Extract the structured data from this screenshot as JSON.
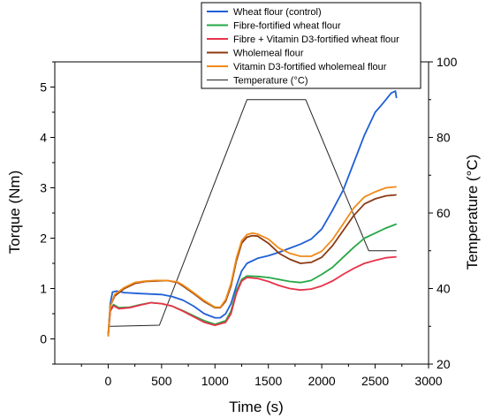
{
  "chart_data": {
    "type": "line",
    "xlabel": "Time (s)",
    "ylabel_left": "Torque (Nm)",
    "ylabel_right": "Temperature (°C)",
    "xlim": [
      -500,
      3000
    ],
    "ylim_left": [
      -0.5,
      5.5
    ],
    "ylim_right": [
      20,
      100
    ],
    "x_ticks": [
      0,
      500,
      1000,
      1500,
      2000,
      2500,
      3000
    ],
    "y_left_ticks": [
      0,
      1,
      2,
      3,
      4,
      5
    ],
    "y_right_ticks": [
      20,
      40,
      60,
      80,
      100
    ],
    "grid": false,
    "legend_position": "top-right",
    "series": [
      {
        "name": "Wheat flour (control)",
        "axis": "left",
        "color": "#1f5fd6",
        "points": [
          [
            0,
            0.05
          ],
          [
            20,
            0.7
          ],
          [
            40,
            0.93
          ],
          [
            80,
            0.95
          ],
          [
            150,
            0.92
          ],
          [
            300,
            0.9
          ],
          [
            500,
            0.88
          ],
          [
            600,
            0.84
          ],
          [
            700,
            0.77
          ],
          [
            800,
            0.65
          ],
          [
            900,
            0.5
          ],
          [
            1000,
            0.42
          ],
          [
            1050,
            0.42
          ],
          [
            1100,
            0.5
          ],
          [
            1150,
            0.7
          ],
          [
            1200,
            1.05
          ],
          [
            1250,
            1.35
          ],
          [
            1300,
            1.5
          ],
          [
            1400,
            1.6
          ],
          [
            1500,
            1.65
          ],
          [
            1600,
            1.72
          ],
          [
            1700,
            1.8
          ],
          [
            1800,
            1.88
          ],
          [
            1900,
            1.98
          ],
          [
            2000,
            2.18
          ],
          [
            2100,
            2.55
          ],
          [
            2200,
            2.95
          ],
          [
            2300,
            3.5
          ],
          [
            2400,
            4.05
          ],
          [
            2500,
            4.5
          ],
          [
            2550,
            4.62
          ],
          [
            2600,
            4.75
          ],
          [
            2650,
            4.88
          ],
          [
            2690,
            4.92
          ],
          [
            2700,
            4.78
          ]
        ]
      },
      {
        "name": "Fibre-fortified wheat flour",
        "axis": "left",
        "color": "#27a745",
        "points": [
          [
            0,
            0.05
          ],
          [
            20,
            0.58
          ],
          [
            50,
            0.68
          ],
          [
            100,
            0.62
          ],
          [
            200,
            0.63
          ],
          [
            300,
            0.68
          ],
          [
            400,
            0.72
          ],
          [
            500,
            0.7
          ],
          [
            600,
            0.65
          ],
          [
            700,
            0.56
          ],
          [
            800,
            0.46
          ],
          [
            900,
            0.36
          ],
          [
            1000,
            0.29
          ],
          [
            1100,
            0.36
          ],
          [
            1150,
            0.55
          ],
          [
            1200,
            0.95
          ],
          [
            1250,
            1.18
          ],
          [
            1300,
            1.25
          ],
          [
            1400,
            1.24
          ],
          [
            1500,
            1.22
          ],
          [
            1600,
            1.18
          ],
          [
            1700,
            1.14
          ],
          [
            1800,
            1.12
          ],
          [
            1900,
            1.16
          ],
          [
            2000,
            1.28
          ],
          [
            2100,
            1.42
          ],
          [
            2200,
            1.62
          ],
          [
            2300,
            1.82
          ],
          [
            2400,
            2.0
          ],
          [
            2500,
            2.1
          ],
          [
            2600,
            2.2
          ],
          [
            2700,
            2.28
          ]
        ]
      },
      {
        "name": "Fibre + Vitamin D3-fortified wheat flour",
        "axis": "left",
        "color": "#e8334a",
        "points": [
          [
            0,
            0.05
          ],
          [
            20,
            0.55
          ],
          [
            50,
            0.66
          ],
          [
            100,
            0.6
          ],
          [
            200,
            0.62
          ],
          [
            300,
            0.67
          ],
          [
            400,
            0.72
          ],
          [
            500,
            0.7
          ],
          [
            600,
            0.65
          ],
          [
            700,
            0.55
          ],
          [
            800,
            0.44
          ],
          [
            900,
            0.33
          ],
          [
            1000,
            0.27
          ],
          [
            1100,
            0.33
          ],
          [
            1150,
            0.5
          ],
          [
            1200,
            0.9
          ],
          [
            1250,
            1.15
          ],
          [
            1300,
            1.22
          ],
          [
            1400,
            1.2
          ],
          [
            1500,
            1.14
          ],
          [
            1600,
            1.06
          ],
          [
            1700,
            1.0
          ],
          [
            1800,
            0.97
          ],
          [
            1900,
            0.99
          ],
          [
            2000,
            1.05
          ],
          [
            2100,
            1.15
          ],
          [
            2200,
            1.28
          ],
          [
            2300,
            1.4
          ],
          [
            2400,
            1.5
          ],
          [
            2500,
            1.56
          ],
          [
            2600,
            1.61
          ],
          [
            2700,
            1.63
          ]
        ]
      },
      {
        "name": "Wholemeal flour",
        "axis": "left",
        "color": "#8b3a12",
        "points": [
          [
            0,
            0.05
          ],
          [
            20,
            0.65
          ],
          [
            60,
            0.85
          ],
          [
            150,
            1.0
          ],
          [
            250,
            1.1
          ],
          [
            350,
            1.14
          ],
          [
            450,
            1.15
          ],
          [
            550,
            1.16
          ],
          [
            650,
            1.12
          ],
          [
            700,
            1.05
          ],
          [
            800,
            0.9
          ],
          [
            900,
            0.74
          ],
          [
            1000,
            0.62
          ],
          [
            1050,
            0.62
          ],
          [
            1100,
            0.75
          ],
          [
            1150,
            1.05
          ],
          [
            1200,
            1.55
          ],
          [
            1250,
            1.9
          ],
          [
            1300,
            2.02
          ],
          [
            1350,
            2.05
          ],
          [
            1400,
            2.04
          ],
          [
            1500,
            1.9
          ],
          [
            1600,
            1.7
          ],
          [
            1700,
            1.58
          ],
          [
            1800,
            1.5
          ],
          [
            1900,
            1.52
          ],
          [
            2000,
            1.62
          ],
          [
            2100,
            1.85
          ],
          [
            2200,
            2.15
          ],
          [
            2300,
            2.45
          ],
          [
            2400,
            2.68
          ],
          [
            2500,
            2.78
          ],
          [
            2600,
            2.84
          ],
          [
            2700,
            2.86
          ]
        ]
      },
      {
        "name": "Vitamin D3-fortified wholemeal flour",
        "axis": "left",
        "color": "#f08a18",
        "points": [
          [
            0,
            0.05
          ],
          [
            20,
            0.65
          ],
          [
            60,
            0.88
          ],
          [
            150,
            1.02
          ],
          [
            250,
            1.12
          ],
          [
            350,
            1.15
          ],
          [
            450,
            1.16
          ],
          [
            550,
            1.16
          ],
          [
            650,
            1.13
          ],
          [
            700,
            1.07
          ],
          [
            800,
            0.92
          ],
          [
            900,
            0.76
          ],
          [
            1000,
            0.63
          ],
          [
            1050,
            0.63
          ],
          [
            1100,
            0.78
          ],
          [
            1150,
            1.1
          ],
          [
            1200,
            1.6
          ],
          [
            1250,
            1.95
          ],
          [
            1300,
            2.07
          ],
          [
            1350,
            2.1
          ],
          [
            1400,
            2.08
          ],
          [
            1500,
            1.98
          ],
          [
            1600,
            1.8
          ],
          [
            1700,
            1.7
          ],
          [
            1800,
            1.64
          ],
          [
            1900,
            1.64
          ],
          [
            2000,
            1.74
          ],
          [
            2100,
            1.97
          ],
          [
            2200,
            2.28
          ],
          [
            2300,
            2.6
          ],
          [
            2400,
            2.82
          ],
          [
            2500,
            2.92
          ],
          [
            2600,
            3.0
          ],
          [
            2700,
            3.02
          ]
        ]
      },
      {
        "name": "Temperature (°C)",
        "axis": "right",
        "color": "#222222",
        "points": [
          [
            0,
            30
          ],
          [
            480,
            30.3
          ],
          [
            1300,
            90
          ],
          [
            1850,
            90
          ],
          [
            2440,
            50
          ],
          [
            2700,
            50
          ]
        ]
      }
    ]
  }
}
